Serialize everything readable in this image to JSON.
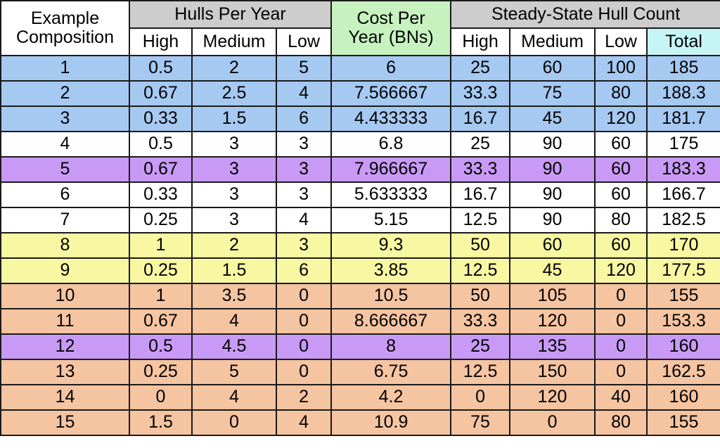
{
  "header": {
    "example_line1": "Example",
    "example_line2": "Composition",
    "hulls_per_year": "Hulls Per Year",
    "cost_line1": "Cost Per",
    "cost_line2": "Year (BNs)",
    "steady_state": "Steady-State Hull Count",
    "high": "High",
    "medium": "Medium",
    "low": "Low",
    "total": "Total"
  },
  "colors": {
    "blue": "#a6c9f2",
    "white": "#ffffff",
    "purple": "#c89af5",
    "yellow": "#f8f8a2",
    "orange": "#f5c4a0",
    "header_gray": "#cdcdcd",
    "cost_green": "#c7f2bf",
    "total_cyan": "#c6f5f5"
  },
  "rows": [
    {
      "color": "blue",
      "cells": [
        "1",
        "0.5",
        "2",
        "5",
        "6",
        "25",
        "60",
        "100",
        "185"
      ]
    },
    {
      "color": "blue",
      "cells": [
        "2",
        "0.67",
        "2.5",
        "4",
        "7.566667",
        "33.3",
        "75",
        "80",
        "188.3"
      ]
    },
    {
      "color": "blue",
      "cells": [
        "3",
        "0.33",
        "1.5",
        "6",
        "4.433333",
        "16.7",
        "45",
        "120",
        "181.7"
      ]
    },
    {
      "color": "white",
      "cells": [
        "4",
        "0.5",
        "3",
        "3",
        "6.8",
        "25",
        "90",
        "60",
        "175"
      ]
    },
    {
      "color": "purple",
      "cells": [
        "5",
        "0.67",
        "3",
        "3",
        "7.966667",
        "33.3",
        "90",
        "60",
        "183.3"
      ]
    },
    {
      "color": "white",
      "cells": [
        "6",
        "0.33",
        "3",
        "3",
        "5.633333",
        "16.7",
        "90",
        "60",
        "166.7"
      ]
    },
    {
      "color": "white",
      "cells": [
        "7",
        "0.25",
        "3",
        "4",
        "5.15",
        "12.5",
        "90",
        "80",
        "182.5"
      ]
    },
    {
      "color": "yellow",
      "cells": [
        "8",
        "1",
        "2",
        "3",
        "9.3",
        "50",
        "60",
        "60",
        "170"
      ]
    },
    {
      "color": "yellow",
      "cells": [
        "9",
        "0.25",
        "1.5",
        "6",
        "3.85",
        "12.5",
        "45",
        "120",
        "177.5"
      ]
    },
    {
      "color": "orange",
      "cells": [
        "10",
        "1",
        "3.5",
        "0",
        "10.5",
        "50",
        "105",
        "0",
        "155"
      ]
    },
    {
      "color": "orange",
      "cells": [
        "11",
        "0.67",
        "4",
        "0",
        "8.666667",
        "33.3",
        "120",
        "0",
        "153.3"
      ]
    },
    {
      "color": "purple",
      "cells": [
        "12",
        "0.5",
        "4.5",
        "0",
        "8",
        "25",
        "135",
        "0",
        "160"
      ]
    },
    {
      "color": "orange",
      "cells": [
        "13",
        "0.25",
        "5",
        "0",
        "6.75",
        "12.5",
        "150",
        "0",
        "162.5"
      ]
    },
    {
      "color": "orange",
      "cells": [
        "14",
        "0",
        "4",
        "2",
        "4.2",
        "0",
        "120",
        "40",
        "160"
      ]
    },
    {
      "color": "orange",
      "cells": [
        "15",
        "1.5",
        "0",
        "4",
        "10.9",
        "75",
        "0",
        "80",
        "155"
      ]
    }
  ]
}
